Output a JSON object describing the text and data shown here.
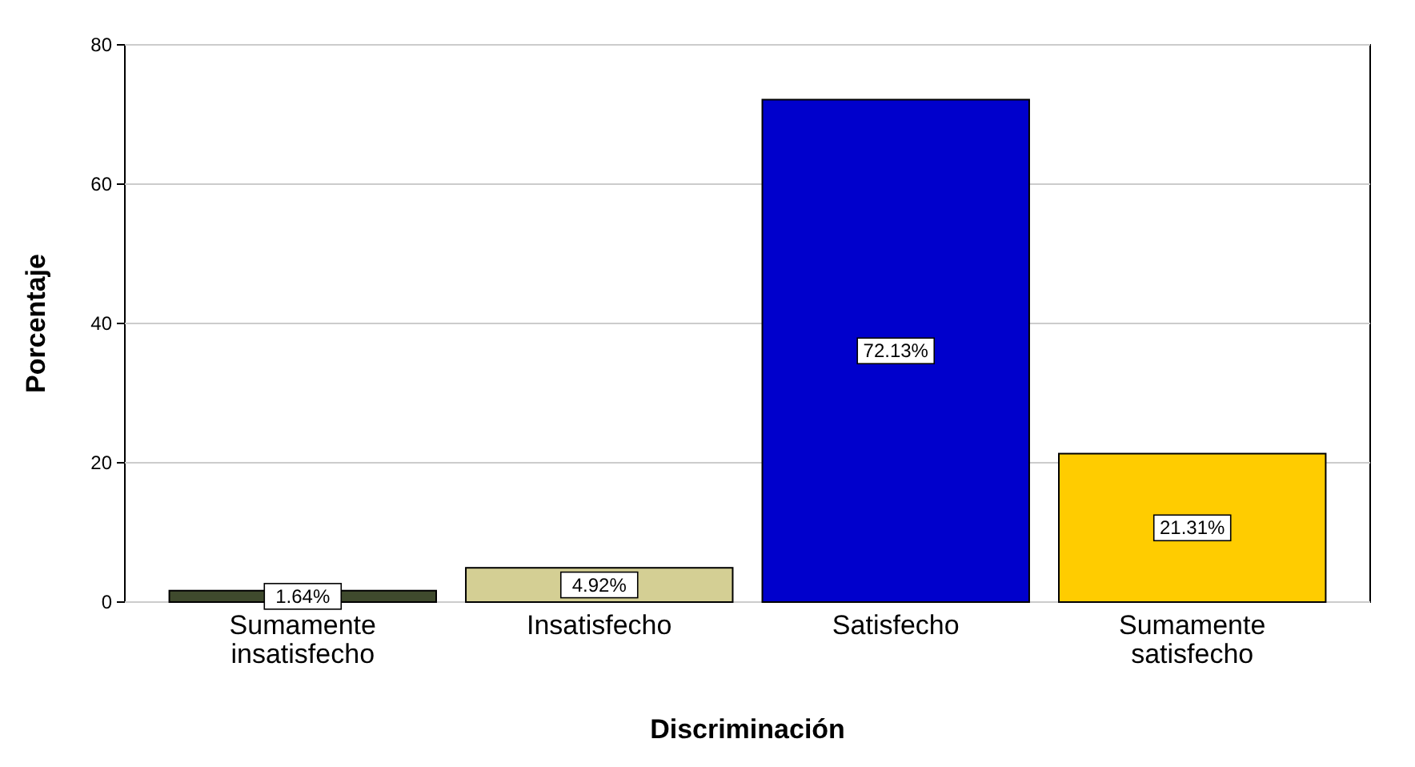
{
  "chart_data": {
    "type": "bar",
    "xlabel": "Discriminación",
    "ylabel": "Porcentaje",
    "categories": [
      "Sumamente insatisfecho",
      "Insatisfecho",
      "Satisfecho",
      "Sumamente satisfecho"
    ],
    "values": [
      1.64,
      4.92,
      72.13,
      21.31
    ],
    "colors": [
      "#3f4a2d",
      "#d4cf94",
      "#0000cc",
      "#ffcc00"
    ],
    "value_labels": [
      "1.64%",
      "4.92%",
      "72.13%",
      "21.31%"
    ],
    "ylim": [
      0,
      80
    ],
    "yticks": [
      0,
      20,
      40,
      60,
      80
    ],
    "grid": "y"
  }
}
